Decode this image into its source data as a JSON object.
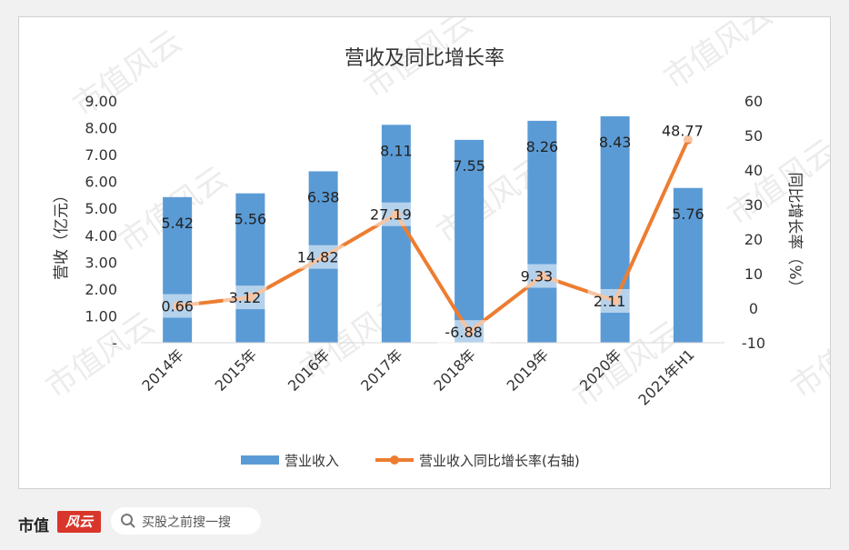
{
  "chart_data": {
    "type": "bar+line",
    "title": "营收及同比增长率",
    "ylabel": "营收（亿元）",
    "y2label": "同比增长率（%）",
    "categories": [
      "2014年",
      "2015年",
      "2016年",
      "2017年",
      "2018年",
      "2019年",
      "2020年",
      "2021年H1"
    ],
    "y_ticks": [
      "9.00",
      "8.00",
      "7.00",
      "6.00",
      "5.00",
      "4.00",
      "3.00",
      "2.00",
      "1.00",
      "-"
    ],
    "y2_ticks": [
      "60",
      "50",
      "40",
      "30",
      "20",
      "10",
      "0",
      "-10"
    ],
    "ylim": [
      0,
      9
    ],
    "y2lim": [
      -10,
      60
    ],
    "grid": false,
    "legend_position": "bottom",
    "series": [
      {
        "name": "营业收入",
        "kind": "bar",
        "axis": "left",
        "color": "#5b9bd5",
        "values": [
          5.42,
          5.56,
          6.38,
          8.11,
          7.55,
          8.26,
          8.43,
          5.76
        ],
        "labels": [
          "5.42",
          "5.56",
          "6.38",
          "8.11",
          "7.55",
          "8.26",
          "8.43",
          "5.76"
        ]
      },
      {
        "name": "营业收入同比增长率(右轴)",
        "kind": "line",
        "axis": "right",
        "color": "#ed7d31",
        "values": [
          0.66,
          3.12,
          14.82,
          27.19,
          -6.88,
          9.33,
          2.11,
          48.77
        ],
        "labels": [
          "0.66",
          "3.12",
          "14.82",
          "27.19",
          "-6.88",
          "9.33",
          "2.11",
          "48.77"
        ]
      }
    ]
  },
  "footer": {
    "brand": "市值",
    "brand_mark": "风云",
    "search_placeholder": "买股之前搜一搜"
  },
  "watermark": "市值风云"
}
